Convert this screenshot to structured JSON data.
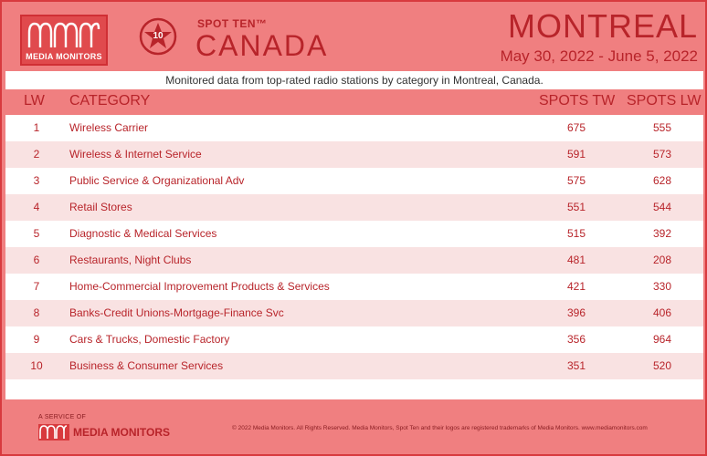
{
  "header": {
    "logo_text": "MEDIA MONITORS",
    "badge_number": "10",
    "spot_ten": "SPOT TEN™",
    "country": "CANADA",
    "city": "MONTREAL",
    "date_range": "May 30, 2022 - June 5, 2022"
  },
  "subtitle": "Monitored data from top-rated radio stations by category in Montreal, Canada.",
  "table": {
    "columns": [
      "LW",
      "CATEGORY",
      "SPOTS TW",
      "SPOTS LW"
    ],
    "rows": [
      {
        "lw": "1",
        "category": "Wireless Carrier",
        "spots_tw": "675",
        "spots_lw": "555"
      },
      {
        "lw": "2",
        "category": "Wireless & Internet Service",
        "spots_tw": "591",
        "spots_lw": "573"
      },
      {
        "lw": "3",
        "category": "Public Service & Organizational Adv",
        "spots_tw": "575",
        "spots_lw": "628"
      },
      {
        "lw": "4",
        "category": "Retail Stores",
        "spots_tw": "551",
        "spots_lw": "544"
      },
      {
        "lw": "5",
        "category": "Diagnostic & Medical Services",
        "spots_tw": "515",
        "spots_lw": "392"
      },
      {
        "lw": "6",
        "category": "Restaurants, Night Clubs",
        "spots_tw": "481",
        "spots_lw": "208"
      },
      {
        "lw": "7",
        "category": "Home-Commercial Improvement Products & Services",
        "spots_tw": "421",
        "spots_lw": "330"
      },
      {
        "lw": "8",
        "category": "Banks-Credit Unions-Mortgage-Finance Svc",
        "spots_tw": "396",
        "spots_lw": "406"
      },
      {
        "lw": "9",
        "category": "Cars & Trucks, Domestic Factory",
        "spots_tw": "356",
        "spots_lw": "964"
      },
      {
        "lw": "10",
        "category": "Business & Consumer Services",
        "spots_tw": "351",
        "spots_lw": "520"
      }
    ]
  },
  "footer": {
    "service_of": "A SERVICE OF",
    "logo_text": "MEDIA MONITORS",
    "copyright": "© 2022 Media Monitors. All Rights Reserved. Media Monitors, Spot Ten and their logos are registered trademarks of Media Monitors. www.mediamonitors.com"
  },
  "colors": {
    "background": "#f07f80",
    "accent": "#b8242a",
    "row_alt": "#f9e2e2"
  }
}
